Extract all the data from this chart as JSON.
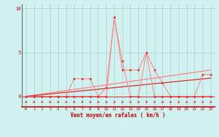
{
  "xlabel": "Vent moyen/en rafales ( km/h )",
  "xlim": [
    -0.5,
    23.5
  ],
  "ylim": [
    -1.2,
    10.5
  ],
  "yticks": [
    0,
    5,
    10
  ],
  "xticks": [
    0,
    1,
    2,
    3,
    4,
    5,
    6,
    7,
    8,
    9,
    10,
    11,
    12,
    13,
    14,
    15,
    16,
    17,
    18,
    19,
    20,
    21,
    22,
    23
  ],
  "background_color": "#cff1ef",
  "grid_color": "#aacccc",
  "hours": [
    0,
    1,
    2,
    3,
    4,
    5,
    6,
    7,
    8,
    9,
    10,
    11,
    12,
    13,
    14,
    15,
    16,
    17,
    18,
    19,
    20,
    21,
    22,
    23
  ],
  "wind_mean": [
    0,
    0,
    0,
    0,
    0,
    0,
    2,
    2,
    2,
    0,
    0,
    9,
    4,
    0,
    0,
    5,
    0,
    0,
    0,
    0,
    0,
    0,
    0,
    0
  ],
  "wind_gust": [
    0,
    0,
    0,
    0,
    0,
    0,
    0,
    0,
    0,
    0,
    1,
    9,
    3,
    3,
    3,
    5,
    3,
    1.5,
    0,
    0,
    0,
    0,
    2.5,
    2.5
  ],
  "line_color": "#ff8888",
  "marker_color": "#dd3333",
  "font_color": "#cc0000",
  "arrow_color": "#dd2222",
  "trend_line1": [
    0.0,
    0.13,
    0.26,
    0.39,
    0.52,
    0.65,
    0.78,
    0.91,
    1.04,
    1.17,
    1.3,
    1.43,
    1.56,
    1.69,
    1.82,
    1.95,
    2.08,
    2.21,
    2.34,
    2.47,
    2.6,
    2.73,
    2.86,
    3.0
  ],
  "trend_line2": [
    0.0,
    0.09,
    0.18,
    0.27,
    0.36,
    0.45,
    0.54,
    0.63,
    0.72,
    0.81,
    0.9,
    0.99,
    1.08,
    1.17,
    1.26,
    1.35,
    1.44,
    1.53,
    1.62,
    1.71,
    1.8,
    1.89,
    1.98,
    2.07
  ]
}
